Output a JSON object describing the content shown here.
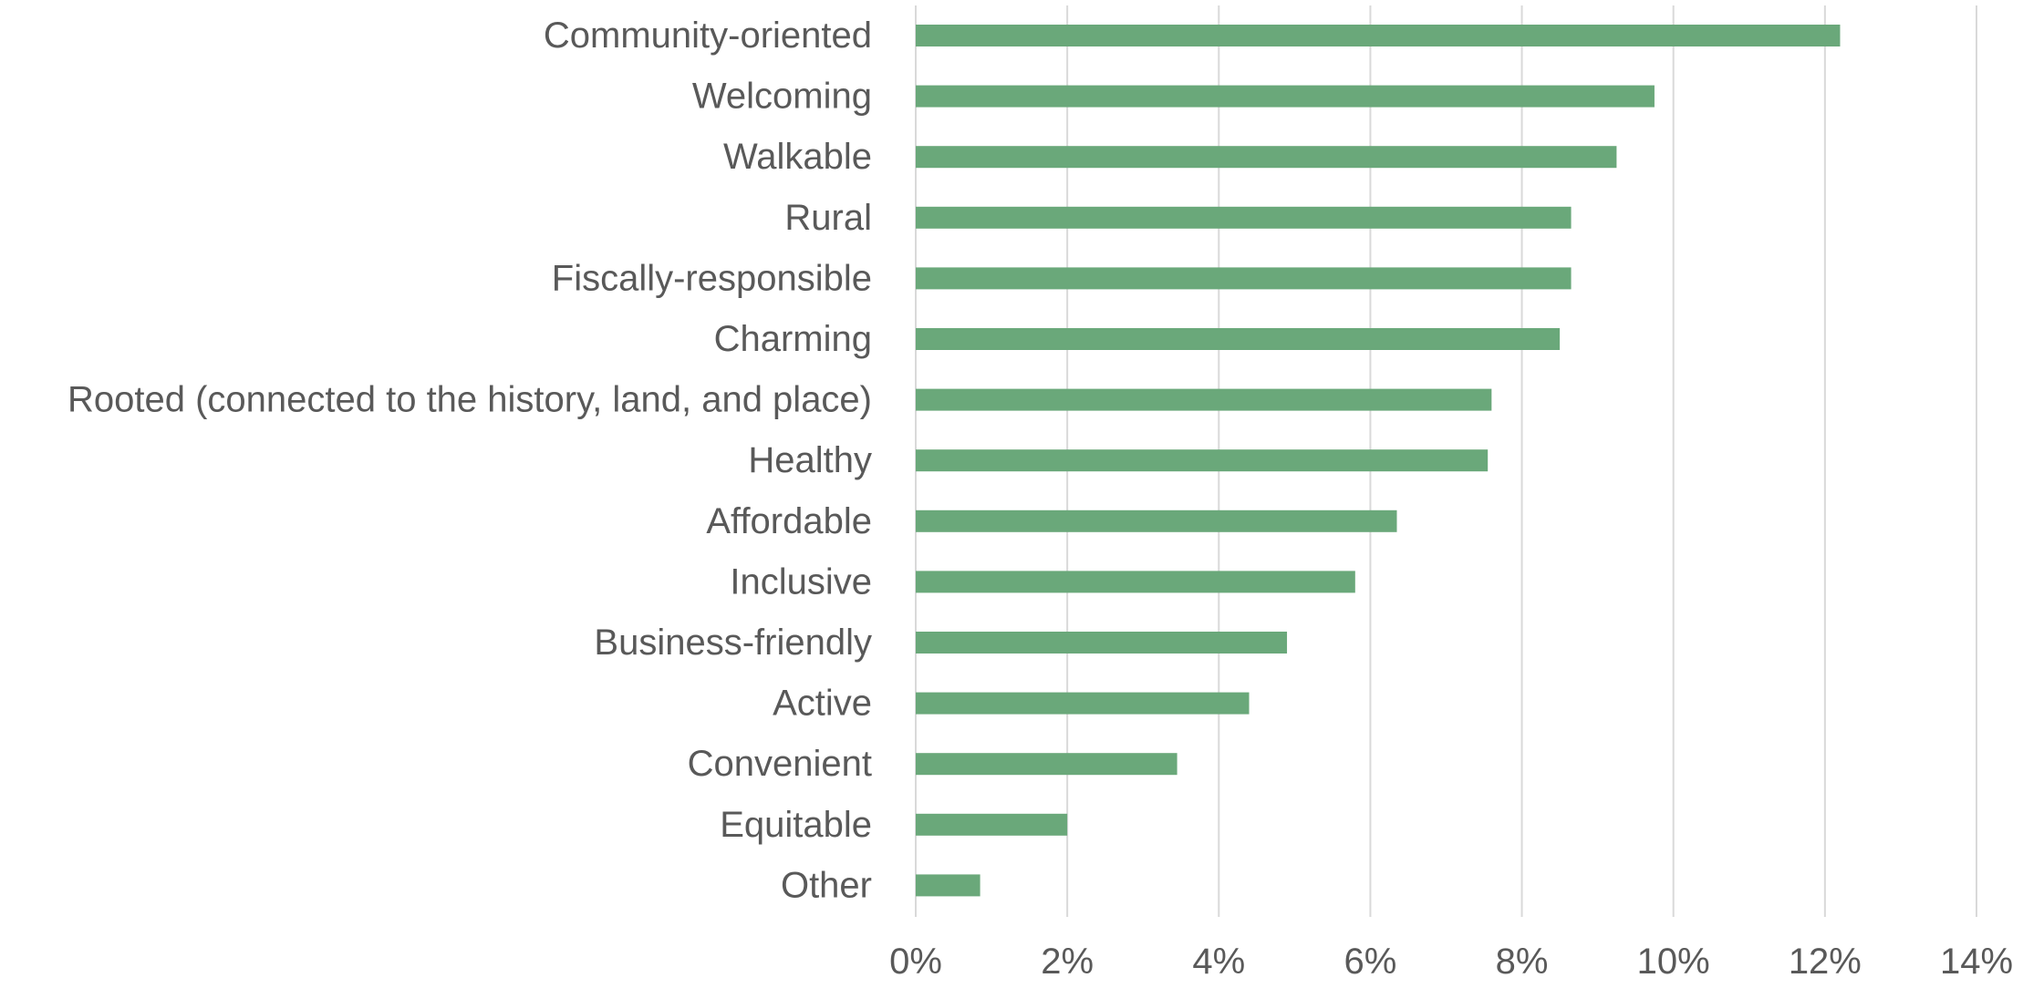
{
  "chart_data": {
    "type": "bar",
    "orientation": "horizontal",
    "categories": [
      "Community-oriented",
      "Welcoming",
      "Walkable",
      "Rural",
      "Fiscally-responsible",
      "Charming",
      "Rooted (connected to the history, land, and place)",
      "Healthy",
      "Affordable",
      "Inclusive",
      "Business-friendly",
      "Active",
      "Convenient",
      "Equitable",
      "Other"
    ],
    "values": [
      12.2,
      9.75,
      9.25,
      8.65,
      8.65,
      8.5,
      7.6,
      7.55,
      6.35,
      5.8,
      4.9,
      4.4,
      3.45,
      2.0,
      0.85
    ],
    "xlim": [
      0,
      14
    ],
    "xticks": [
      0,
      2,
      4,
      6,
      8,
      10,
      12,
      14
    ],
    "tick_labels": [
      "0%",
      "2%",
      "4%",
      "6%",
      "8%",
      "10%",
      "12%",
      "14%"
    ],
    "value_unit": "%",
    "title": "",
    "xlabel": "",
    "ylabel": "",
    "grid": "vertical",
    "legend": "none",
    "bar_color": "#6aa87a",
    "gridline_color": "#d9d9d9",
    "text_color": "#595959"
  }
}
